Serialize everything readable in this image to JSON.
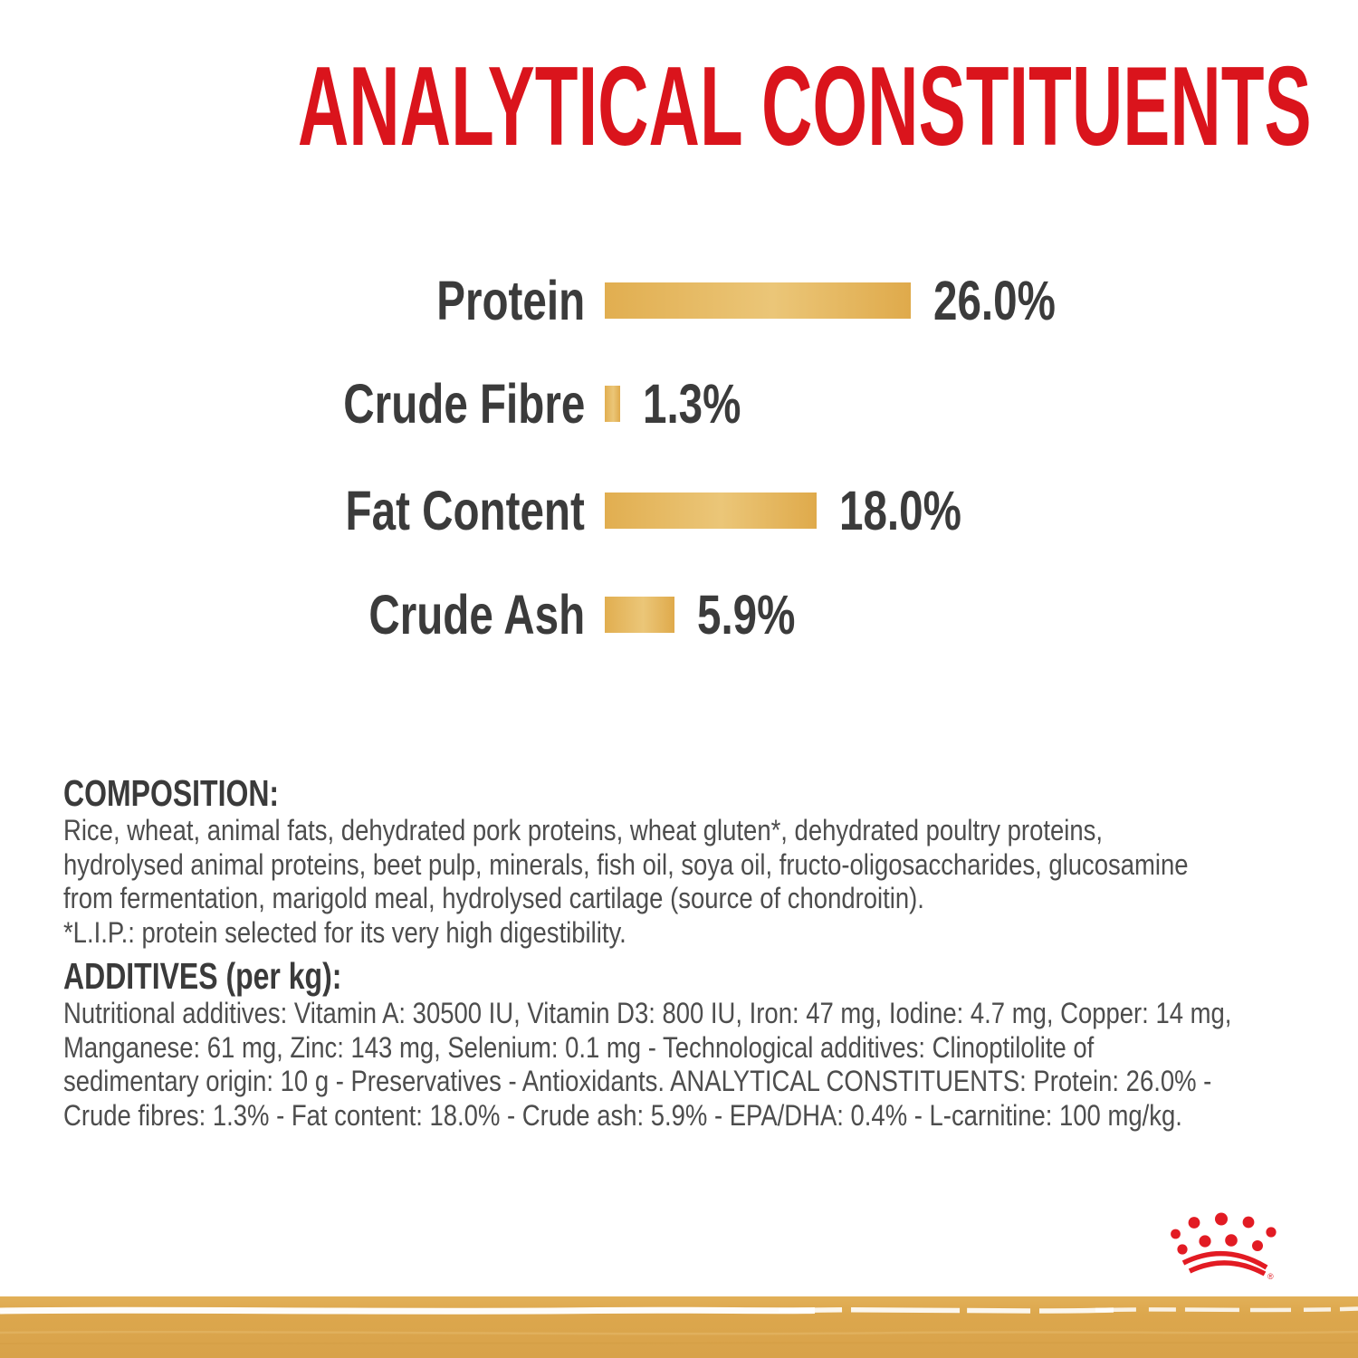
{
  "page": {
    "title": "ANALYTICAL CONSTITUENTS"
  },
  "colors": {
    "title_red": "#DA141C",
    "logo_red": "#E21B23",
    "text_dark": "#3B3B3B",
    "body_gray": "#4D4D4D",
    "bar_gold": "#E1AE50",
    "bar_gold_light": "#EBC678",
    "footer_gold": "#DCA74D"
  },
  "chart_data": {
    "type": "bar",
    "orientation": "horizontal",
    "categories": [
      "Protein",
      "Crude Fibre",
      "Fat Content",
      "Crude Ash"
    ],
    "values": [
      26.0,
      1.3,
      18.0,
      5.9
    ],
    "value_labels": [
      "26.0%",
      "1.3%",
      "18.0%",
      "5.9%"
    ],
    "unit": "percent",
    "xlim": [
      0,
      26
    ],
    "grid": false,
    "legend": false,
    "title": "ANALYTICAL CONSTITUENTS"
  },
  "composition": {
    "heading": "COMPOSITION:",
    "lines": [
      "Rice, wheat, animal fats, dehydrated pork proteins, wheat gluten*, dehydrated poultry proteins,",
      "hydrolysed animal proteins, beet pulp, minerals, fish oil, soya oil, fructo-oligosaccharides, glucosamine",
      "from fermentation, marigold meal, hydrolysed cartilage (source of chondroitin).",
      "*L.I.P.: protein selected for its very high digestibility."
    ]
  },
  "additives": {
    "heading": "ADDITIVES (per kg):",
    "lines": [
      "Nutritional additives: Vitamin A: 30500 IU, Vitamin D3: 800 IU, Iron: 47 mg, Iodine: 4.7 mg, Copper: 14 mg,",
      "Manganese: 61 mg, Zinc: 143 mg, Selenium: 0.1 mg - Technological additives: Clinoptilolite of",
      "sedimentary origin: 10 g - Preservatives - Antioxidants. ANALYTICAL CONSTITUENTS: Protein: 26.0% -",
      "Crude fibres: 1.3% - Fat content: 18.0% - Crude ash: 5.9% - EPA/DHA: 0.4% - L-carnitine: 100 mg/kg."
    ]
  },
  "footer": {
    "logo": "royal-canin-crown",
    "registered_mark": "®"
  }
}
